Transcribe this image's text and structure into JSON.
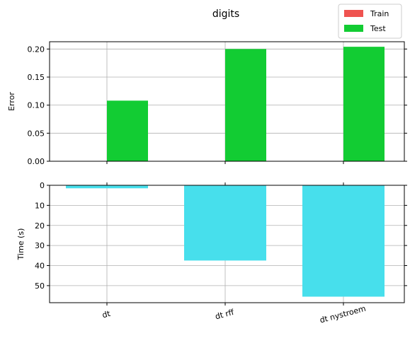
{
  "chart_data": [
    {
      "type": "bar",
      "title": "digits",
      "xlabel": "",
      "ylabel": "Error",
      "categories": [
        "dt",
        "dt rff",
        "dt nystroem"
      ],
      "series": [
        {
          "name": "Train",
          "values": [
            0.0,
            0.0,
            0.0
          ],
          "color": "#ef5350"
        },
        {
          "name": "Test",
          "values": [
            0.108,
            0.2,
            0.204
          ],
          "color": "#12cc33"
        }
      ],
      "ylim": [
        0,
        0.213
      ],
      "yticks": [
        "0.00",
        "0.05",
        "0.10",
        "0.15",
        "0.20"
      ],
      "grid": true,
      "legend": "top-right"
    },
    {
      "type": "bar",
      "xlabel": "",
      "ylabel": "Time (s)",
      "categories": [
        "dt",
        "dt rff",
        "dt nystroem"
      ],
      "series": [
        {
          "values": [
            1.5,
            37.5,
            55.5
          ],
          "color": "#47dfec"
        }
      ],
      "ylim": [
        0,
        58.5
      ],
      "y_inverted": true,
      "yticks": [
        "0",
        "10",
        "20",
        "30",
        "40",
        "50"
      ],
      "grid": true
    }
  ]
}
